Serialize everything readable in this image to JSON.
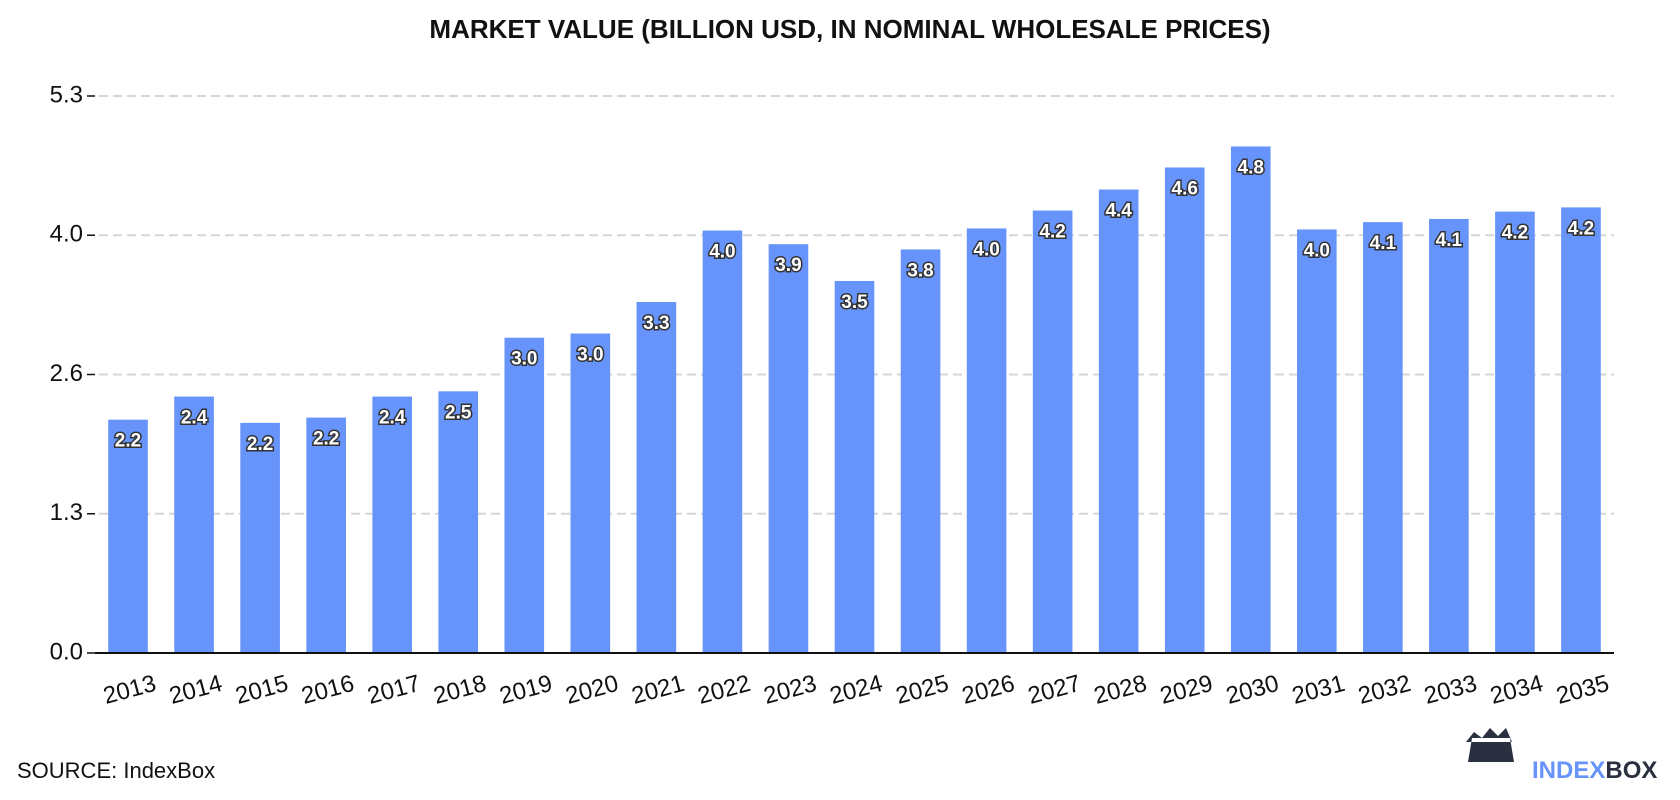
{
  "chart_data": {
    "type": "bar",
    "title": "MARKET VALUE (BILLION USD, IN NOMINAL WHOLESALE PRICES)",
    "categories": [
      "2013",
      "2014",
      "2015",
      "2016",
      "2017",
      "2018",
      "2019",
      "2020",
      "2021",
      "2022",
      "2023",
      "2024",
      "2025",
      "2026",
      "2027",
      "2028",
      "2029",
      "2030",
      "2031",
      "2032",
      "2033",
      "2034",
      "2035"
    ],
    "values": [
      2.22,
      2.44,
      2.19,
      2.24,
      2.44,
      2.49,
      3.0,
      3.04,
      3.34,
      4.02,
      3.89,
      3.54,
      3.84,
      4.04,
      4.21,
      4.41,
      4.62,
      4.82,
      4.03,
      4.1,
      4.13,
      4.2,
      4.24
    ],
    "value_labels": [
      "2.2",
      "2.4",
      "2.2",
      "2.2",
      "2.4",
      "2.5",
      "3.0",
      "3.0",
      "3.3",
      "4.0",
      "3.9",
      "3.5",
      "3.8",
      "4.0",
      "4.2",
      "4.4",
      "4.6",
      "4.8",
      "4.0",
      "4.1",
      "4.1",
      "4.2",
      "4.2"
    ],
    "color": "#6694fb",
    "ylim": [
      0,
      5.3
    ],
    "yticks": [
      {
        "value": 0,
        "label": "0.0"
      },
      {
        "value": 1.325,
        "label": "1.3"
      },
      {
        "value": 2.65,
        "label": "2.6"
      },
      {
        "value": 3.975,
        "label": "4.0"
      },
      5.3
    ],
    "grid": true
  },
  "source": "SOURCE: IndexBox",
  "logo": {
    "part1": "INDEX",
    "part2": "BOX"
  }
}
